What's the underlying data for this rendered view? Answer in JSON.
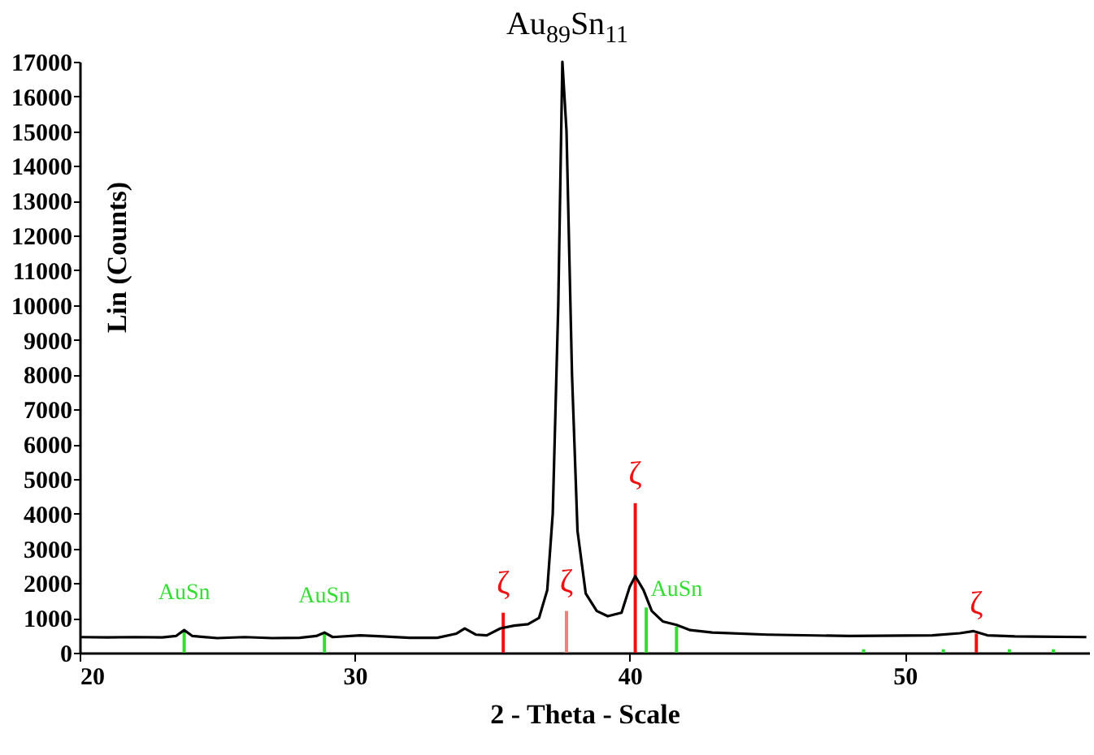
{
  "chart_data": {
    "type": "line",
    "title": "Au$_{89}$Sn$_{11}$",
    "xlabel": "2 - Theta - Scale",
    "ylabel": "Lin (Counts)",
    "xlim": [
      20,
      56.7
    ],
    "xticks": [
      20,
      30,
      40,
      50
    ],
    "ylim": [
      0,
      17000
    ],
    "yticks": [
      0,
      1000,
      2000,
      3000,
      4000,
      5000,
      6000,
      7000,
      8000,
      9000,
      10000,
      11000,
      12000,
      13000,
      14000,
      15000,
      16000,
      17000
    ],
    "grid": false,
    "marker": "none",
    "line_style": "solid",
    "series": [
      {
        "color": "#000000",
        "x": [
          20,
          21,
          22,
          23,
          23.5,
          23.8,
          24.1,
          25,
          26,
          27,
          28,
          28.6,
          28.9,
          29.2,
          30.2,
          31,
          32,
          33,
          33.7,
          34,
          34.4,
          34.8,
          35.3,
          35.8,
          36.3,
          36.7,
          37,
          37.2,
          37.4,
          37.55,
          37.7,
          37.9,
          38.1,
          38.4,
          38.8,
          39.2,
          39.7,
          40,
          40.2,
          40.5,
          40.8,
          41.2,
          41.7,
          42.2,
          43,
          45,
          48,
          51,
          52,
          52.5,
          53,
          54,
          56.6
        ],
        "values": [
          450,
          440,
          450,
          440,
          480,
          650,
          480,
          420,
          450,
          420,
          430,
          480,
          580,
          450,
          500,
          470,
          430,
          430,
          550,
          700,
          520,
          500,
          700,
          780,
          820,
          1000,
          1800,
          4000,
          10000,
          17000,
          15000,
          8000,
          3500,
          1700,
          1200,
          1050,
          1150,
          1900,
          2200,
          1800,
          1200,
          900,
          800,
          650,
          580,
          520,
          480,
          500,
          560,
          620,
          500,
          470,
          450
        ]
      },
      {
        "type": "bar",
        "color": "#33dd33",
        "x": [
          23.8,
          28.9,
          40.6,
          41.7,
          48.5,
          51.4,
          53.8,
          55.4
        ],
        "values": [
          650,
          550,
          1300,
          750,
          100,
          100,
          100,
          100
        ]
      },
      {
        "type": "bar",
        "color": "#ee1111",
        "colors": [
          "#ee1111",
          "#f08080",
          "#ee1111",
          "#ee1111"
        ],
        "x": [
          35.4,
          37.7,
          40.2,
          52.6
        ],
        "values": [
          1150,
          1200,
          4300,
          550
        ]
      }
    ],
    "annotations": [
      {
        "text": "AuSn",
        "x": 23.8,
        "y": 650
      },
      {
        "text": "AuSn",
        "x": 28.9,
        "y": 550
      },
      {
        "text": "AuSn",
        "x": 41.7,
        "y": 750
      },
      {
        "text": "ζ",
        "x": 35.4,
        "y": 1150
      },
      {
        "text": "ζ",
        "x": 37.7,
        "y": 1200
      },
      {
        "text": "ζ",
        "x": 40.2,
        "y": 4300
      },
      {
        "text": "ζ",
        "x": 52.6,
        "y": 550
      }
    ]
  }
}
